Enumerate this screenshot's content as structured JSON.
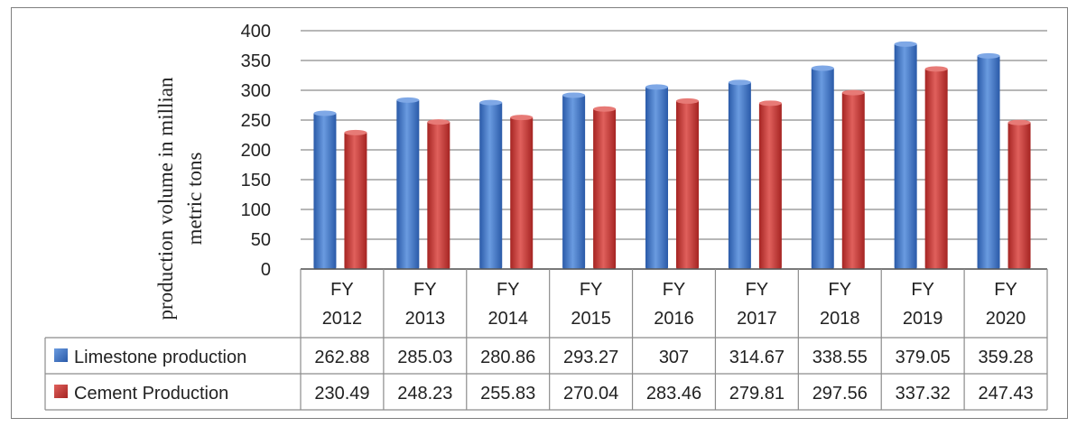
{
  "chart_data": {
    "type": "bar",
    "title": "",
    "xlabel": "",
    "ylabel_lines": [
      "production volume in millian",
      "metric tons"
    ],
    "categories": [
      [
        "FY",
        "2012"
      ],
      [
        "FY",
        "2013"
      ],
      [
        "FY",
        "2014"
      ],
      [
        "FY",
        "2015"
      ],
      [
        "FY",
        "2016"
      ],
      [
        "FY",
        "2017"
      ],
      [
        "FY",
        "2018"
      ],
      [
        "FY",
        "2019"
      ],
      [
        "FY",
        "2020"
      ]
    ],
    "ylim": [
      0,
      400
    ],
    "yticks": [
      0,
      50,
      100,
      150,
      200,
      250,
      300,
      350,
      400
    ],
    "grid": true,
    "series": [
      {
        "name": "Limestone production",
        "color": "#3d6fc0",
        "values": [
          262.88,
          285.03,
          280.86,
          293.27,
          307,
          314.67,
          338.55,
          379.05,
          359.28
        ],
        "labels": [
          "262.88",
          "285.03",
          "280.86",
          "293.27",
          "307",
          "314.67",
          "338.55",
          "379.05",
          "359.28"
        ]
      },
      {
        "name": "Cement Production",
        "color": "#c0302e",
        "values": [
          230.49,
          248.23,
          255.83,
          270.04,
          283.46,
          279.81,
          297.56,
          337.32,
          247.43
        ],
        "labels": [
          "230.49",
          "248.23",
          "255.83",
          "270.04",
          "283.46",
          "279.81",
          "297.56",
          "337.32",
          "247.43"
        ]
      }
    ]
  }
}
